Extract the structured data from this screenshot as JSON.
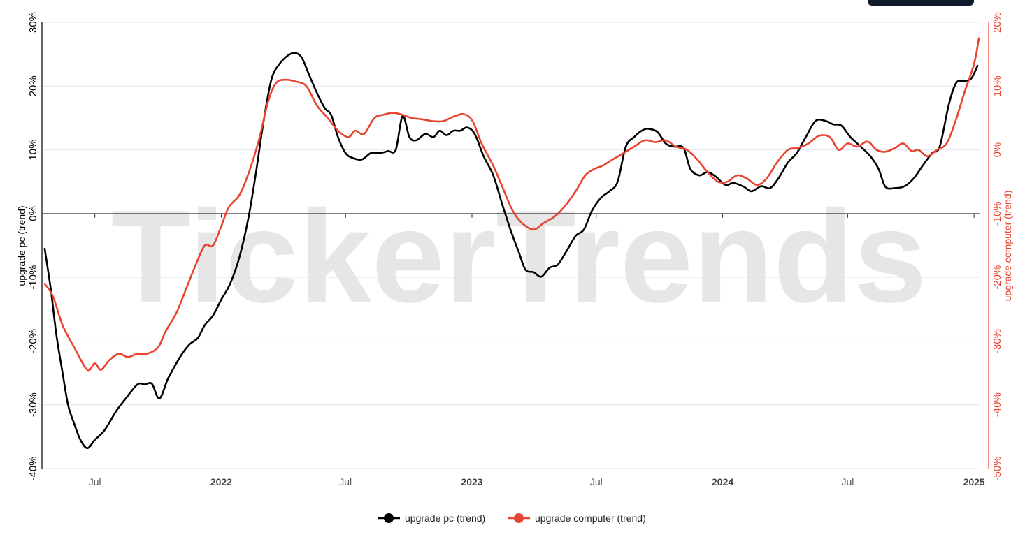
{
  "watermark": "TickerTrends",
  "colors": {
    "pc": "#000000",
    "computer": "#e8442f",
    "grid": "#e3e4f4",
    "zero": "#333333"
  },
  "chart_data": {
    "type": "line",
    "xlabel": "",
    "y_left": {
      "label": "upgrade pc  (trend)",
      "ticks": [
        -40,
        -30,
        -20,
        -10,
        0,
        10,
        20,
        30
      ],
      "tick_labels": [
        "-40%",
        "-30%",
        "-20%",
        "-10%",
        "0%",
        "10%",
        "20%",
        "30%"
      ],
      "range": [
        -40,
        30
      ]
    },
    "y_right": {
      "label": "upgrade computer  (trend)",
      "ticks": [
        -50,
        -40,
        -30,
        -20,
        -10,
        0,
        10,
        20
      ],
      "tick_labels": [
        "-50%",
        "-40%",
        "-30%",
        "-20%",
        "-10%",
        "0%",
        "10%",
        "20%"
      ],
      "range": [
        -50,
        20
      ]
    },
    "x_range": [
      "2021-04-15",
      "2025-01-10"
    ],
    "x_ticks": [
      {
        "date": "2021-07-01",
        "label": "Jul",
        "bold": false
      },
      {
        "date": "2022-01-01",
        "label": "2022",
        "bold": true
      },
      {
        "date": "2022-07-01",
        "label": "Jul",
        "bold": false
      },
      {
        "date": "2023-01-01",
        "label": "2023",
        "bold": true
      },
      {
        "date": "2023-07-01",
        "label": "Jul",
        "bold": false
      },
      {
        "date": "2024-01-01",
        "label": "2024",
        "bold": true
      },
      {
        "date": "2024-07-01",
        "label": "Jul",
        "bold": false
      },
      {
        "date": "2025-01-01",
        "label": "2025",
        "bold": true
      }
    ],
    "series": [
      {
        "name": "upgrade pc  (trend)",
        "axis": "left",
        "color": "#000000",
        "points": [
          [
            "2021-04-19",
            -5.5
          ],
          [
            "2021-04-28",
            -12
          ],
          [
            "2021-05-06",
            -19
          ],
          [
            "2021-05-15",
            -25
          ],
          [
            "2021-05-23",
            -30
          ],
          [
            "2021-06-01",
            -33
          ],
          [
            "2021-06-10",
            -35.5
          ],
          [
            "2021-06-20",
            -36.8
          ],
          [
            "2021-07-01",
            -35.5
          ],
          [
            "2021-07-15",
            -34
          ],
          [
            "2021-08-01",
            -31
          ],
          [
            "2021-08-15",
            -29
          ],
          [
            "2021-09-01",
            -26.8
          ],
          [
            "2021-09-12",
            -26.8
          ],
          [
            "2021-09-22",
            -26.7
          ],
          [
            "2021-10-03",
            -29
          ],
          [
            "2021-10-15",
            -26
          ],
          [
            "2021-10-25",
            -24
          ],
          [
            "2021-11-05",
            -22
          ],
          [
            "2021-11-16",
            -20.5
          ],
          [
            "2021-11-28",
            -19.5
          ],
          [
            "2021-12-08",
            -17.5
          ],
          [
            "2021-12-20",
            -16
          ],
          [
            "2022-01-01",
            -13.5
          ],
          [
            "2022-01-14",
            -11
          ],
          [
            "2022-01-27",
            -7
          ],
          [
            "2022-02-09",
            -1
          ],
          [
            "2022-02-20",
            6
          ],
          [
            "2022-03-03",
            14
          ],
          [
            "2022-03-15",
            21
          ],
          [
            "2022-03-27",
            23.5
          ],
          [
            "2022-04-08",
            24.8
          ],
          [
            "2022-04-18",
            25.2
          ],
          [
            "2022-04-28",
            24.5
          ],
          [
            "2022-05-08",
            22
          ],
          [
            "2022-05-20",
            19
          ],
          [
            "2022-06-01",
            16.5
          ],
          [
            "2022-06-10",
            15.5
          ],
          [
            "2022-06-20",
            12
          ],
          [
            "2022-07-01",
            9.5
          ],
          [
            "2022-07-12",
            8.7
          ],
          [
            "2022-07-25",
            8.5
          ],
          [
            "2022-08-07",
            9.5
          ],
          [
            "2022-08-20",
            9.5
          ],
          [
            "2022-09-01",
            9.8
          ],
          [
            "2022-09-12",
            10
          ],
          [
            "2022-09-22",
            15.3
          ],
          [
            "2022-10-02",
            12
          ],
          [
            "2022-10-12",
            11.5
          ],
          [
            "2022-10-25",
            12.5
          ],
          [
            "2022-11-06",
            12
          ],
          [
            "2022-11-15",
            13
          ],
          [
            "2022-11-25",
            12.3
          ],
          [
            "2022-12-05",
            13
          ],
          [
            "2022-12-15",
            13
          ],
          [
            "2022-12-25",
            13.5
          ],
          [
            "2023-01-05",
            12.5
          ],
          [
            "2023-01-18",
            9
          ],
          [
            "2023-02-01",
            6
          ],
          [
            "2023-02-14",
            1.5
          ],
          [
            "2023-02-26",
            -2.5
          ],
          [
            "2023-03-10",
            -6
          ],
          [
            "2023-03-20",
            -8.8
          ],
          [
            "2023-04-01",
            -9.2
          ],
          [
            "2023-04-12",
            -9.9
          ],
          [
            "2023-04-24",
            -8.5
          ],
          [
            "2023-05-06",
            -8
          ],
          [
            "2023-05-18",
            -6
          ],
          [
            "2023-06-01",
            -3.5
          ],
          [
            "2023-06-13",
            -2.5
          ],
          [
            "2023-06-25",
            0.5
          ],
          [
            "2023-07-08",
            2.5
          ],
          [
            "2023-07-20",
            3.5
          ],
          [
            "2023-08-01",
            5
          ],
          [
            "2023-08-13",
            10.5
          ],
          [
            "2023-08-25",
            12
          ],
          [
            "2023-09-05",
            13
          ],
          [
            "2023-09-15",
            13.3
          ],
          [
            "2023-09-28",
            12.8
          ],
          [
            "2023-10-10",
            11
          ],
          [
            "2023-10-22",
            10.5
          ],
          [
            "2023-11-05",
            10.3
          ],
          [
            "2023-11-15",
            7
          ],
          [
            "2023-11-28",
            6
          ],
          [
            "2023-12-10",
            6.5
          ],
          [
            "2023-12-22",
            5.8
          ],
          [
            "2024-01-05",
            4.5
          ],
          [
            "2024-01-17",
            4.8
          ],
          [
            "2024-02-01",
            4.2
          ],
          [
            "2024-02-12",
            3.5
          ],
          [
            "2024-02-26",
            4.3
          ],
          [
            "2024-03-10",
            4
          ],
          [
            "2024-03-22",
            5.5
          ],
          [
            "2024-04-05",
            8
          ],
          [
            "2024-04-18",
            9.5
          ],
          [
            "2024-05-01",
            12
          ],
          [
            "2024-05-15",
            14.5
          ],
          [
            "2024-05-28",
            14.6
          ],
          [
            "2024-06-10",
            14
          ],
          [
            "2024-06-22",
            13.8
          ],
          [
            "2024-07-05",
            12
          ],
          [
            "2024-07-20",
            10.5
          ],
          [
            "2024-08-03",
            9
          ],
          [
            "2024-08-15",
            7
          ],
          [
            "2024-08-25",
            4.2
          ],
          [
            "2024-09-08",
            4
          ],
          [
            "2024-09-22",
            4.3
          ],
          [
            "2024-10-05",
            5.5
          ],
          [
            "2024-10-18",
            7.5
          ],
          [
            "2024-11-01",
            9.5
          ],
          [
            "2024-11-12",
            10.5
          ],
          [
            "2024-11-25",
            17
          ],
          [
            "2024-12-06",
            20.5
          ],
          [
            "2024-12-18",
            20.8
          ],
          [
            "2024-12-28",
            21.2
          ],
          [
            "2025-01-06",
            23.2
          ]
        ]
      },
      {
        "name": "upgrade computer  (trend)",
        "axis": "right",
        "color": "#e8442f",
        "points": [
          [
            "2021-04-19",
            -21
          ],
          [
            "2021-05-01",
            -23
          ],
          [
            "2021-05-15",
            -27.5
          ],
          [
            "2021-06-01",
            -31
          ],
          [
            "2021-06-20",
            -34.5
          ],
          [
            "2021-07-01",
            -33.5
          ],
          [
            "2021-07-10",
            -34.5
          ],
          [
            "2021-07-22",
            -33
          ],
          [
            "2021-08-05",
            -32
          ],
          [
            "2021-08-18",
            -32.5
          ],
          [
            "2021-09-01",
            -32
          ],
          [
            "2021-09-15",
            -32
          ],
          [
            "2021-10-01",
            -31
          ],
          [
            "2021-10-12",
            -28.5
          ],
          [
            "2021-10-28",
            -25.5
          ],
          [
            "2021-11-12",
            -21.5
          ],
          [
            "2021-11-25",
            -18
          ],
          [
            "2021-12-08",
            -15
          ],
          [
            "2021-12-20",
            -15
          ],
          [
            "2022-01-01",
            -12
          ],
          [
            "2022-01-12",
            -9
          ],
          [
            "2022-01-28",
            -7
          ],
          [
            "2022-02-12",
            -3
          ],
          [
            "2022-02-26",
            2
          ],
          [
            "2022-03-10",
            7.5
          ],
          [
            "2022-03-22",
            10.5
          ],
          [
            "2022-04-05",
            11
          ],
          [
            "2022-04-20",
            10.7
          ],
          [
            "2022-05-05",
            10
          ],
          [
            "2022-05-20",
            7
          ],
          [
            "2022-06-05",
            5
          ],
          [
            "2022-06-20",
            3
          ],
          [
            "2022-07-05",
            2
          ],
          [
            "2022-07-15",
            3
          ],
          [
            "2022-07-28",
            2.5
          ],
          [
            "2022-08-12",
            5
          ],
          [
            "2022-08-25",
            5.5
          ],
          [
            "2022-09-08",
            5.8
          ],
          [
            "2022-09-22",
            5.5
          ],
          [
            "2022-10-05",
            5
          ],
          [
            "2022-10-20",
            4.8
          ],
          [
            "2022-11-05",
            4.5
          ],
          [
            "2022-11-20",
            4.5
          ],
          [
            "2022-12-05",
            5.2
          ],
          [
            "2022-12-20",
            5.6
          ],
          [
            "2023-01-02",
            4.5
          ],
          [
            "2023-01-15",
            1
          ],
          [
            "2023-02-01",
            -2.5
          ],
          [
            "2023-02-15",
            -6
          ],
          [
            "2023-03-01",
            -9.5
          ],
          [
            "2023-03-15",
            -11.5
          ],
          [
            "2023-04-01",
            -12.5
          ],
          [
            "2023-04-15",
            -11.5
          ],
          [
            "2023-05-01",
            -10.5
          ],
          [
            "2023-05-15",
            -9
          ],
          [
            "2023-06-01",
            -6.5
          ],
          [
            "2023-06-15",
            -4
          ],
          [
            "2023-06-28",
            -3
          ],
          [
            "2023-07-10",
            -2.5
          ],
          [
            "2023-07-25",
            -1.5
          ],
          [
            "2023-08-10",
            -0.5
          ],
          [
            "2023-08-25",
            0.5
          ],
          [
            "2023-09-10",
            1.5
          ],
          [
            "2023-09-25",
            1.2
          ],
          [
            "2023-10-10",
            1.5
          ],
          [
            "2023-10-25",
            0.5
          ],
          [
            "2023-11-10",
            0
          ],
          [
            "2023-11-25",
            -1.5
          ],
          [
            "2023-12-10",
            -3.5
          ],
          [
            "2023-12-25",
            -5
          ],
          [
            "2024-01-08",
            -5
          ],
          [
            "2024-01-22",
            -4
          ],
          [
            "2024-02-05",
            -4.5
          ],
          [
            "2024-02-20",
            -5.5
          ],
          [
            "2024-03-05",
            -4.5
          ],
          [
            "2024-03-20",
            -2
          ],
          [
            "2024-04-05",
            0
          ],
          [
            "2024-04-20",
            0.3
          ],
          [
            "2024-05-05",
            1
          ],
          [
            "2024-05-20",
            2.2
          ],
          [
            "2024-06-05",
            2
          ],
          [
            "2024-06-18",
            0
          ],
          [
            "2024-07-01",
            1
          ],
          [
            "2024-07-15",
            0.5
          ],
          [
            "2024-07-30",
            1.3
          ],
          [
            "2024-08-12",
            0
          ],
          [
            "2024-08-25",
            -0.3
          ],
          [
            "2024-09-08",
            0.3
          ],
          [
            "2024-09-20",
            1
          ],
          [
            "2024-10-02",
            -0.2
          ],
          [
            "2024-10-12",
            0
          ],
          [
            "2024-10-25",
            -1
          ],
          [
            "2024-11-08",
            0
          ],
          [
            "2024-11-22",
            1
          ],
          [
            "2024-12-05",
            4.5
          ],
          [
            "2024-12-18",
            9
          ],
          [
            "2025-01-01",
            13.5
          ],
          [
            "2025-01-08",
            17.5
          ]
        ]
      }
    ],
    "legend": {
      "position": "bottom-center",
      "items": [
        "upgrade pc  (trend)",
        "upgrade computer  (trend)"
      ]
    }
  }
}
